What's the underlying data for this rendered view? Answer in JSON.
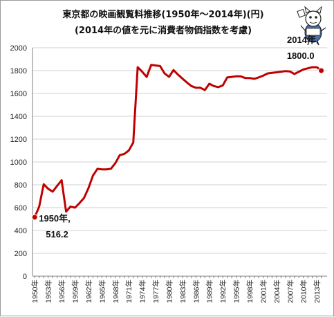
{
  "chart_data": {
    "type": "line",
    "title": "東京都の映画観覧料推移(1950年～2014年)(円)",
    "subtitle": "(2014年の値を元に消費者物価指数を考慮)",
    "xlabel": "",
    "ylabel": "",
    "ylim": [
      0,
      2000
    ],
    "y_ticks": [
      "0",
      "200",
      "400",
      "600",
      "800",
      "1000",
      "1200",
      "1400",
      "1600",
      "1800",
      "2000"
    ],
    "x_tick_labels": [
      "1950年",
      "1953年",
      "1956年",
      "1959年",
      "1962年",
      "1965年",
      "1968年",
      "1971年",
      "1974年",
      "1977年",
      "1980年",
      "1983年",
      "1986年",
      "1989年",
      "1992年",
      "1995年",
      "1998年",
      "2001年",
      "2004年",
      "2007年",
      "2010年",
      "2013年"
    ],
    "grid": true,
    "legend": "none",
    "series": [
      {
        "color": "#c00000",
        "x": [
          1950,
          1951,
          1952,
          1953,
          1954,
          1955,
          1956,
          1957,
          1958,
          1959,
          1960,
          1961,
          1962,
          1963,
          1964,
          1965,
          1966,
          1967,
          1968,
          1969,
          1970,
          1971,
          1972,
          1973,
          1974,
          1975,
          1976,
          1977,
          1978,
          1979,
          1980,
          1981,
          1982,
          1983,
          1984,
          1985,
          1986,
          1987,
          1988,
          1989,
          1990,
          1991,
          1992,
          1993,
          1994,
          1995,
          1996,
          1997,
          1998,
          1999,
          2000,
          2001,
          2002,
          2003,
          2004,
          2005,
          2006,
          2007,
          2008,
          2009,
          2010,
          2011,
          2012,
          2013,
          2014
        ],
        "values": [
          516.2,
          610,
          805,
          765,
          740,
          790,
          840,
          565,
          610,
          600,
          640,
          685,
          770,
          880,
          940,
          935,
          935,
          940,
          990,
          1060,
          1070,
          1100,
          1170,
          1830,
          1790,
          1745,
          1850,
          1845,
          1840,
          1775,
          1745,
          1805,
          1765,
          1730,
          1695,
          1665,
          1650,
          1650,
          1630,
          1685,
          1665,
          1655,
          1670,
          1740,
          1745,
          1750,
          1750,
          1735,
          1735,
          1728,
          1740,
          1755,
          1775,
          1780,
          1785,
          1790,
          1795,
          1793,
          1770,
          1790,
          1810,
          1820,
          1830,
          1830,
          1800.0
        ]
      }
    ],
    "annotations": [
      {
        "year_label": "1950年,",
        "value_label": "516.2",
        "x": 1950,
        "y": 516.2
      },
      {
        "year_label": "2014年,",
        "value_label": "1800.0",
        "x": 2014,
        "y": 1800.0
      }
    ]
  }
}
